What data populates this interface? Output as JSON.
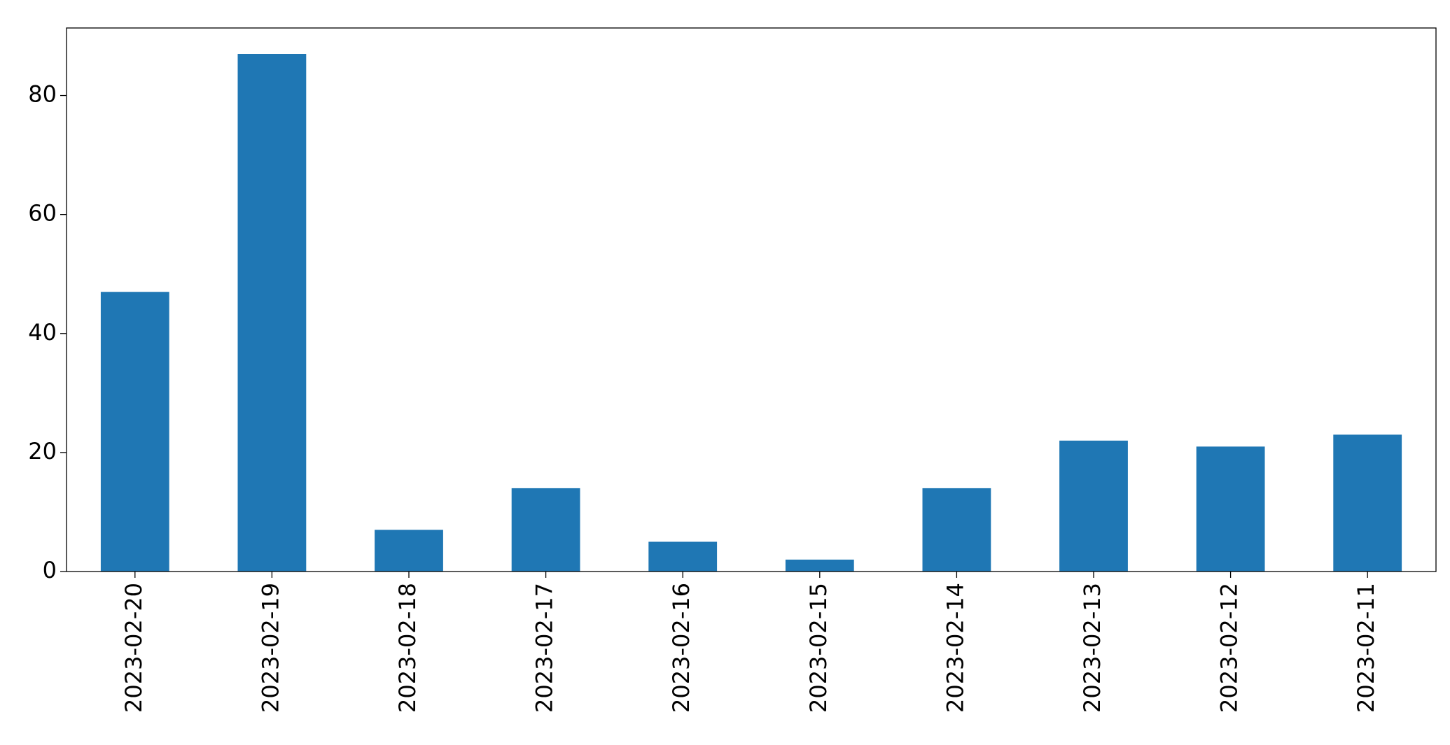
{
  "chart_data": {
    "type": "bar",
    "categories": [
      "2023-02-20",
      "2023-02-19",
      "2023-02-18",
      "2023-02-17",
      "2023-02-16",
      "2023-02-15",
      "2023-02-14",
      "2023-02-13",
      "2023-02-12",
      "2023-02-11"
    ],
    "values": [
      47,
      87,
      7,
      14,
      5,
      2,
      14,
      22,
      21,
      23
    ],
    "color": "#1f77b4",
    "ylim": [
      0,
      91.35
    ],
    "yticks": [
      0,
      20,
      40,
      60,
      80
    ],
    "grid": false
  }
}
